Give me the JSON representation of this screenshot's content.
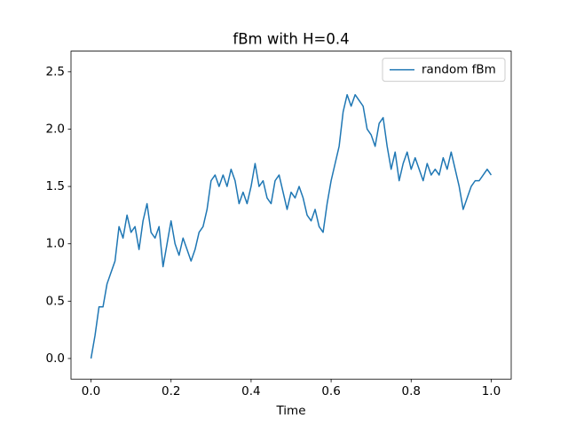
{
  "chart_data": {
    "type": "line",
    "title": "fBm with H=0.4",
    "xlabel": "Time",
    "x": [
      0.0,
      0.01,
      0.02,
      0.03,
      0.04,
      0.05,
      0.06,
      0.07,
      0.08,
      0.09,
      0.1,
      0.11,
      0.12,
      0.13,
      0.14,
      0.15,
      0.16,
      0.17,
      0.18,
      0.19,
      0.2,
      0.21,
      0.22,
      0.23,
      0.24,
      0.25,
      0.26,
      0.27,
      0.28,
      0.29,
      0.3,
      0.31,
      0.32,
      0.33,
      0.34,
      0.35,
      0.36,
      0.37,
      0.38,
      0.39,
      0.4,
      0.41,
      0.42,
      0.43,
      0.44,
      0.45,
      0.46,
      0.47,
      0.48,
      0.49,
      0.5,
      0.51,
      0.52,
      0.53,
      0.54,
      0.55,
      0.56,
      0.57,
      0.58,
      0.59,
      0.6,
      0.61,
      0.62,
      0.63,
      0.64,
      0.65,
      0.66,
      0.67,
      0.68,
      0.69,
      0.7,
      0.71,
      0.72,
      0.73,
      0.74,
      0.75,
      0.76,
      0.77,
      0.78,
      0.79,
      0.8,
      0.81,
      0.82,
      0.83,
      0.84,
      0.85,
      0.86,
      0.87,
      0.88,
      0.89,
      0.9,
      0.91,
      0.92,
      0.93,
      0.94,
      0.95,
      0.96,
      0.97,
      0.98,
      0.99,
      1.0
    ],
    "series": [
      {
        "name": "random fBm",
        "color": "#1f77b4",
        "values": [
          0.0,
          0.2,
          0.45,
          0.45,
          0.65,
          0.75,
          0.85,
          1.15,
          1.05,
          1.25,
          1.1,
          1.15,
          0.95,
          1.2,
          1.35,
          1.1,
          1.05,
          1.15,
          0.8,
          1.0,
          1.2,
          1.0,
          0.9,
          1.05,
          0.95,
          0.85,
          0.95,
          1.1,
          1.15,
          1.3,
          1.55,
          1.6,
          1.5,
          1.6,
          1.5,
          1.65,
          1.55,
          1.35,
          1.45,
          1.35,
          1.5,
          1.7,
          1.5,
          1.55,
          1.4,
          1.35,
          1.55,
          1.6,
          1.45,
          1.3,
          1.45,
          1.4,
          1.5,
          1.4,
          1.25,
          1.2,
          1.3,
          1.15,
          1.1,
          1.35,
          1.55,
          1.7,
          1.85,
          2.15,
          2.3,
          2.2,
          2.3,
          2.25,
          2.2,
          2.0,
          1.95,
          1.85,
          2.05,
          2.1,
          1.85,
          1.65,
          1.8,
          1.55,
          1.7,
          1.8,
          1.65,
          1.75,
          1.65,
          1.55,
          1.7,
          1.6,
          1.65,
          1.6,
          1.75,
          1.65,
          1.8,
          1.65,
          1.5,
          1.3,
          1.4,
          1.5,
          1.55,
          1.55,
          1.6,
          1.65,
          1.6
        ]
      }
    ],
    "xlim": [
      -0.05,
      1.05
    ],
    "xticks": [
      {
        "value": 0.0,
        "label": "0.0"
      },
      0.2,
      0.4,
      0.6,
      0.8,
      {
        "value": 1.0,
        "label": "1.0"
      }
    ],
    "ylim": [
      -0.18,
      2.68
    ],
    "yticks": [
      {
        "value": 0.0,
        "label": "0.0"
      },
      0.5,
      {
        "value": 1.0,
        "label": "1.0"
      },
      1.5,
      {
        "value": 2.0,
        "label": "2.0"
      },
      2.5
    ],
    "legend": "upper right",
    "grid": false
  }
}
